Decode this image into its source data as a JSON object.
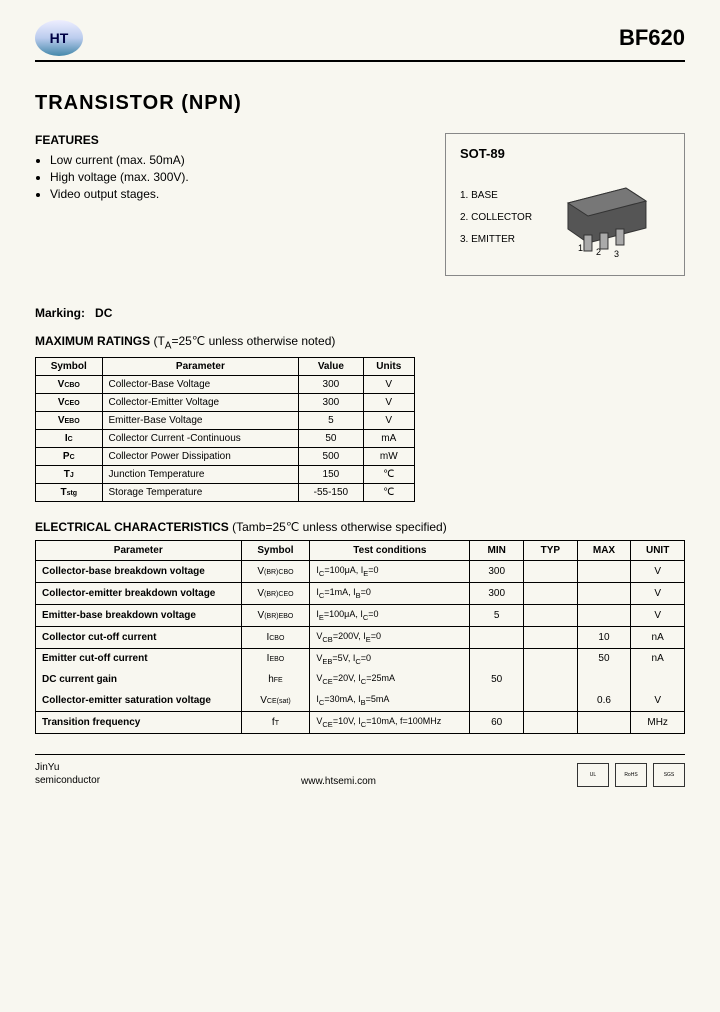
{
  "header": {
    "logo_text": "HT",
    "part_number": "BF620"
  },
  "title": "TRANSISTOR  (NPN)",
  "features": {
    "heading": "FEATURES",
    "items": [
      "Low current (max. 50mA)",
      "High voltage (max. 300V).",
      "Video output stages."
    ]
  },
  "package": {
    "name": "SOT-89",
    "pins": [
      "1. BASE",
      "2. COLLECTOR",
      "3. EMITTER"
    ],
    "body_color": "#555",
    "pin_labels": [
      "1",
      "2",
      "3"
    ]
  },
  "marking": {
    "label": "Marking:",
    "code": "DC"
  },
  "ratings": {
    "heading": "MAXIMUM RATINGS",
    "conditions": "(T",
    "conditions_sub": "A",
    "conditions_rest": "=25℃ unless otherwise noted)",
    "headers": [
      "Symbol",
      "Parameter",
      "Value",
      "Units"
    ],
    "rows": [
      {
        "sym": "V",
        "sub": "CBO",
        "param": "Collector-Base Voltage",
        "val": "300",
        "unit": "V"
      },
      {
        "sym": "V",
        "sub": "CEO",
        "param": "Collector-Emitter Voltage",
        "val": "300",
        "unit": "V"
      },
      {
        "sym": "V",
        "sub": "EBO",
        "param": "Emitter-Base Voltage",
        "val": "5",
        "unit": "V"
      },
      {
        "sym": "I",
        "sub": "C",
        "param": "Collector Current -Continuous",
        "val": "50",
        "unit": "mA"
      },
      {
        "sym": "P",
        "sub": "C",
        "param": "Collector Power Dissipation",
        "val": "500",
        "unit": "mW"
      },
      {
        "sym": "T",
        "sub": "J",
        "param": "Junction Temperature",
        "val": "150",
        "unit": "℃"
      },
      {
        "sym": "T",
        "sub": "stg",
        "param": "Storage Temperature",
        "val": "-55-150",
        "unit": "℃"
      }
    ]
  },
  "electrical": {
    "heading": "ELECTRICAL CHARACTERISTICS",
    "conditions": "(Tamb=25℃ unless otherwise specified)",
    "headers": [
      "Parameter",
      "Symbol",
      "Test    conditions",
      "MIN",
      "TYP",
      "MAX",
      "UNIT"
    ],
    "rows": [
      {
        "param": "Collector-base breakdown voltage",
        "sym": "V",
        "sub": "(BR)CBO",
        "cond": "I",
        "condsub": "C",
        "condrest": "=100μA, I",
        "condsub2": "E",
        "condrest2": "=0",
        "min": "300",
        "typ": "",
        "max": "",
        "unit": "V",
        "bold": true
      },
      {
        "param": "Collector-emitter breakdown voltage",
        "sym": "V",
        "sub": "(BR)CEO",
        "cond": "I",
        "condsub": "C",
        "condrest": "=1mA, I",
        "condsub2": "B",
        "condrest2": "=0",
        "min": "300",
        "typ": "",
        "max": "",
        "unit": "V",
        "bold": true
      },
      {
        "param": "Emitter-base breakdown voltage",
        "sym": "V",
        "sub": "(BR)EBO",
        "cond": "I",
        "condsub": "E",
        "condrest": "=100μA, I",
        "condsub2": "C",
        "condrest2": "=0",
        "min": "5",
        "typ": "",
        "max": "",
        "unit": "V",
        "bold": true
      },
      {
        "param": "Collector cut-off current",
        "sym": "I",
        "sub": "CBO",
        "cond": "V",
        "condsub": "CB",
        "condrest": "=200V, I",
        "condsub2": "E",
        "condrest2": "=0",
        "min": "",
        "typ": "",
        "max": "10",
        "unit": "nA",
        "bold": true
      },
      {
        "param": "Emitter cut-off current",
        "sym": "I",
        "sub": "EBO",
        "cond": "V",
        "condsub": "EB",
        "condrest": "=5V, I",
        "condsub2": "C",
        "condrest2": "=0",
        "min": "",
        "typ": "",
        "max": "50",
        "unit": "nA",
        "bold": true
      },
      {
        "param": "DC current gain",
        "sym": "h",
        "sub": "FE",
        "cond": "V",
        "condsub": "CE",
        "condrest": "=20V, I",
        "condsub2": "C",
        "condrest2": "=25mA",
        "min": "50",
        "typ": "",
        "max": "",
        "unit": "",
        "bold": true
      },
      {
        "param": "Collector-emitter saturation voltage",
        "sym": "V",
        "sub": "CE(sat)",
        "cond": "I",
        "condsub": "C",
        "condrest": "=30mA, I",
        "condsub2": "B",
        "condrest2": "=5mA",
        "min": "",
        "typ": "",
        "max": "0.6",
        "unit": "V",
        "bold": true
      },
      {
        "param": "Transition frequency",
        "sym": "f",
        "sub": "T",
        "cond": "V",
        "condsub": "CE",
        "condrest": "=10V, I",
        "condsub2": "C",
        "condrest2": "=10mA, f=100MHz",
        "min": "60",
        "typ": "",
        "max": "",
        "unit": "MHz",
        "bold": true
      }
    ]
  },
  "footer": {
    "company1": "JinYu",
    "company2": "semiconductor",
    "url": "www.htsemi.com",
    "badges": [
      "UL",
      "RoHS",
      "SGS"
    ]
  }
}
